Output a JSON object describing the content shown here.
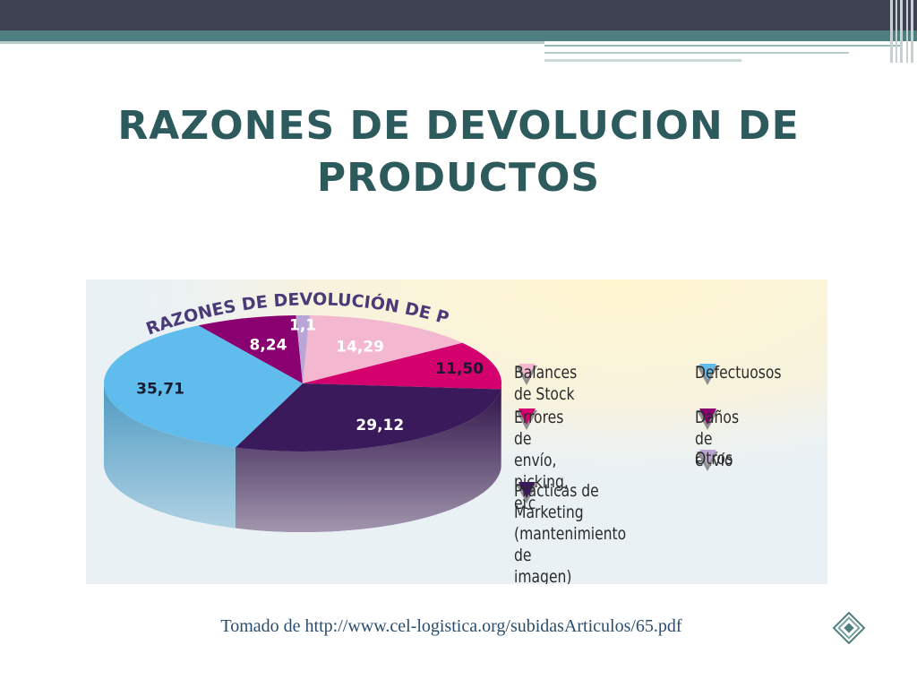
{
  "slide": {
    "title_line1": "RAZONES DE DEVOLUCION DE",
    "title_line2": "PRODUCTOS",
    "source": "Tomado de http://www.cel-logistica.org/subidasArticulos/65.pdf"
  },
  "icons": {
    "nav": "diamond-nav-icon"
  },
  "colors": {
    "title": "#2d5a5c",
    "band_dark": "#3e4152",
    "band_teal": "#4e7f7e"
  },
  "chart_data": {
    "type": "pie",
    "title": "RAZONES DE DEVOLUCIÓN DE PRODUCTOS",
    "labels": [
      "Balances de Stock",
      "Errores de envío, picking, etc",
      "Prácticas de Marketing (mantenimiento de imagen)",
      "Defectuosos",
      "Daños de envío",
      "Otros"
    ],
    "values": [
      14.29,
      11.5,
      29.12,
      35.71,
      8.24,
      1.1
    ],
    "value_labels": [
      "14,29",
      "11,50",
      "29,12",
      "35,71",
      "8,24",
      "1,1"
    ],
    "colors": [
      "#f3b8d0",
      "#d4006e",
      "#3a1a5a",
      "#5fbcec",
      "#8b0070",
      "#b9a6d6"
    ],
    "legend": {
      "placement": "right",
      "items": [
        {
          "label": "Balances de Stock",
          "color": "#f3b8d0"
        },
        {
          "label": "Errores de envío,\npicking, etc",
          "color": "#d4006e"
        },
        {
          "label": "Prácticas de Marketing\n(mantenimiento de\nimagen)",
          "color": "#3a1a5a"
        },
        {
          "label": "Defectuosos",
          "color": "#5fbcec"
        },
        {
          "label": "Daños de envío",
          "color": "#8b0070"
        },
        {
          "label": "Otros",
          "color": "#b9a6d6"
        }
      ]
    }
  }
}
